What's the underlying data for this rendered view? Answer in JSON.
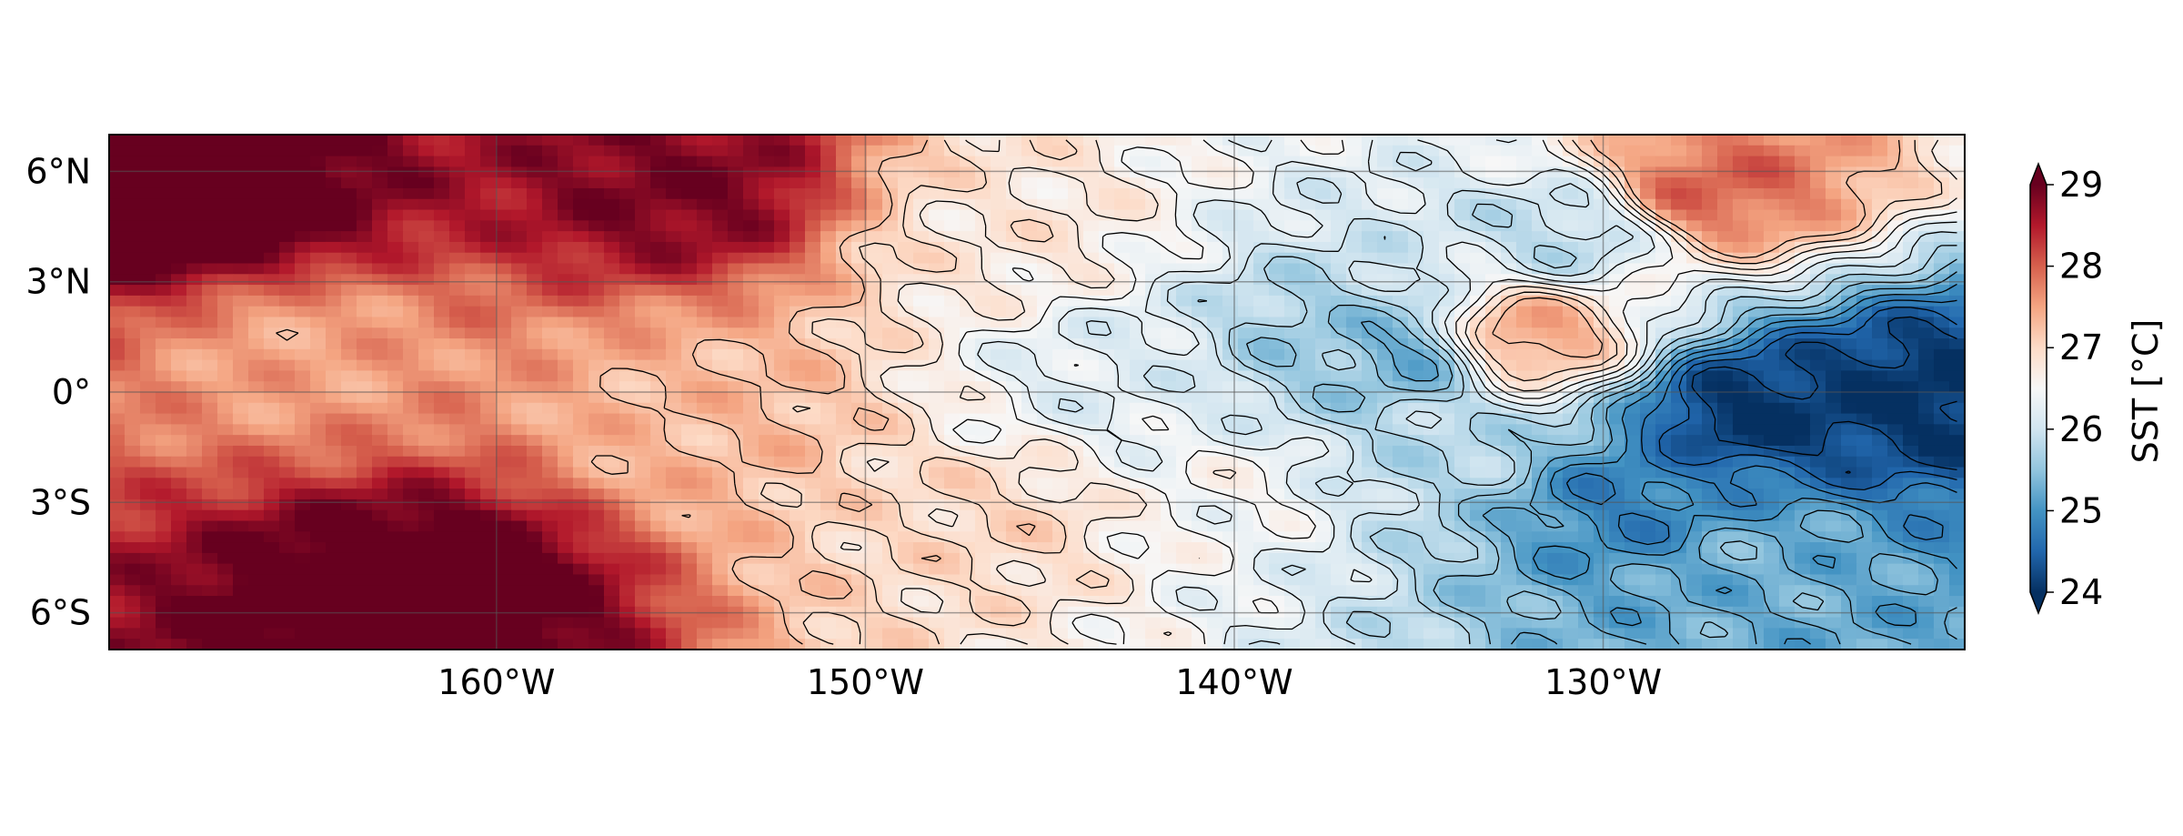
{
  "chart_data": {
    "type": "heatmap",
    "title": "",
    "projection": "plate-carree",
    "extent": {
      "lon": [
        -170.5,
        -120.2
      ],
      "lat": [
        -7.0,
        7.0
      ]
    },
    "x_ticks": [
      {
        "value": -160,
        "label": "160°W"
      },
      {
        "value": -150,
        "label": "150°W"
      },
      {
        "value": -140,
        "label": "140°W"
      },
      {
        "value": -130,
        "label": "130°W"
      }
    ],
    "y_ticks": [
      {
        "value": 6,
        "label": "6°N"
      },
      {
        "value": 3,
        "label": "3°N"
      },
      {
        "value": 0,
        "label": "0°"
      },
      {
        "value": -3,
        "label": "3°S"
      },
      {
        "value": -6,
        "label": "6°S"
      }
    ],
    "gridlines": true,
    "colormap": "RdBu_r",
    "colorbar": {
      "label": "SST [°C]",
      "range": [
        24,
        29
      ],
      "ticks": [
        24,
        25,
        26,
        27,
        28,
        29
      ],
      "extend": "both",
      "placement": "right",
      "colors": [
        "#053061",
        "#2166ac",
        "#4393c3",
        "#92c5de",
        "#d1e5f0",
        "#f7f7f7",
        "#fddbc7",
        "#f4a582",
        "#d6604d",
        "#b2182b",
        "#67001f"
      ]
    },
    "contours": {
      "color": "#000000",
      "interval_c": 0.25,
      "min_c": 24.25,
      "max_c": 27.25
    },
    "features": [
      {
        "lon": -126.0,
        "lat": -0.5,
        "sst": 24.0
      },
      {
        "lon": -121.5,
        "lat": 0.0,
        "sst": 24.0
      },
      {
        "lon": -129.0,
        "lat": -3.0,
        "sst": 24.8
      },
      {
        "lon": -126.0,
        "lat": -4.5,
        "sst": 25.3
      },
      {
        "lon": -135.5,
        "lat": 1.0,
        "sst": 25.2
      },
      {
        "lon": -137.5,
        "lat": 1.2,
        "sst": 25.6
      },
      {
        "lon": -135.0,
        "lat": -1.5,
        "sst": 25.8
      },
      {
        "lon": -131.0,
        "lat": 4.3,
        "sst": 25.8
      },
      {
        "lon": -143.0,
        "lat": 0.5,
        "sst": 26.2
      },
      {
        "lon": -140.0,
        "lat": -2.5,
        "sst": 26.5
      },
      {
        "lon": -146.0,
        "lat": 4.3,
        "sst": 26.8
      },
      {
        "lon": -146.5,
        "lat": -3.5,
        "sst": 27.0
      },
      {
        "lon": -154.0,
        "lat": -0.5,
        "sst": 27.3
      },
      {
        "lon": -165.5,
        "lat": 1.2,
        "sst": 27.5
      },
      {
        "lon": -127.0,
        "lat": 5.5,
        "sst": 28.0
      },
      {
        "lon": -132.0,
        "lat": 1.5,
        "sst": 27.6
      },
      {
        "lon": -168.0,
        "lat": 5.0,
        "sst": 29.4
      },
      {
        "lon": -162.0,
        "lat": -5.5,
        "sst": 29.4
      },
      {
        "lon": -155.0,
        "lat": 5.5,
        "sst": 28.9
      }
    ]
  }
}
